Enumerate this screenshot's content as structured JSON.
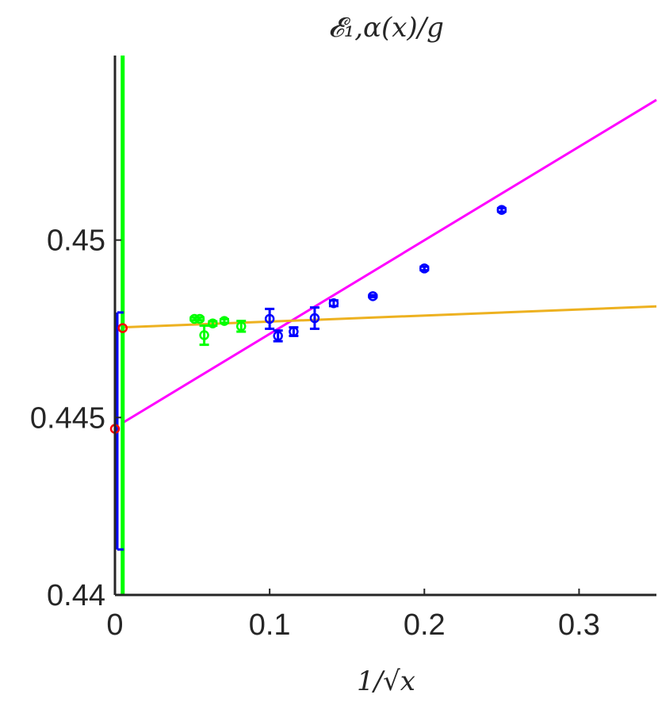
{
  "chart_data": {
    "type": "scatter",
    "title": "𝓔₁,α(x)/g",
    "xlabel": "1/√x",
    "ylabel": "",
    "xlim": [
      0,
      0.35
    ],
    "ylim": [
      0.44,
      0.4552
    ],
    "xticks": [
      0,
      0.1,
      0.2,
      0.3
    ],
    "xtick_labels": [
      "0",
      "0.1",
      "0.2",
      "0.3"
    ],
    "yticks": [
      0.44,
      0.445,
      0.45
    ],
    "ytick_labels": [
      "0.44",
      "0.445",
      "0.45"
    ],
    "grid": false,
    "legend": "none",
    "series": [
      {
        "kind": "errorbar",
        "color": "#0000ff",
        "points": [
          {
            "x": 0.25,
            "y": 0.45085,
            "err": 5e-05
          },
          {
            "x": 0.2,
            "y": 0.4492,
            "err": 5e-05
          },
          {
            "x": 0.1667,
            "y": 0.44842,
            "err": 3e-05
          },
          {
            "x": 0.1414,
            "y": 0.44822,
            "err": 8e-05
          },
          {
            "x": 0.1291,
            "y": 0.4478,
            "err": 0.0003
          },
          {
            "x": 0.1155,
            "y": 0.44742,
            "err": 0.00012
          },
          {
            "x": 0.1054,
            "y": 0.4473,
            "err": 0.00015
          },
          {
            "x": 0.1,
            "y": 0.44778,
            "err": 0.00028
          }
        ]
      },
      {
        "kind": "errorbar",
        "color": "#00ff00",
        "points": [
          {
            "x": 0.0816,
            "y": 0.44757,
            "err": 0.00015
          },
          {
            "x": 0.0707,
            "y": 0.44772,
            "err": 5e-05
          },
          {
            "x": 0.0632,
            "y": 0.44765,
            "err": 6e-05
          },
          {
            "x": 0.0577,
            "y": 0.44732,
            "err": 0.00027
          },
          {
            "x": 0.0548,
            "y": 0.44778,
            "err": 4e-05
          },
          {
            "x": 0.0514,
            "y": 0.44778,
            "err": 4e-05
          }
        ]
      },
      {
        "kind": "line",
        "color": "#ff00ff",
        "x": [
          0.005,
          0.35
        ],
        "y": [
          0.44485,
          0.45395
        ]
      },
      {
        "kind": "line",
        "color": "#edb120",
        "x": [
          0.005,
          0.35
        ],
        "y": [
          0.44754,
          0.44813
        ]
      },
      {
        "kind": "vline",
        "color": "#00ff00",
        "x": 0.005
      },
      {
        "kind": "extrapolation",
        "color": "#0000ff",
        "x": 0,
        "y": 0.44468,
        "range": [
          0.44128,
          0.44796
        ]
      },
      {
        "kind": "marker",
        "color": "#ff0000",
        "x": 0.005,
        "y": 0.44752
      }
    ]
  }
}
